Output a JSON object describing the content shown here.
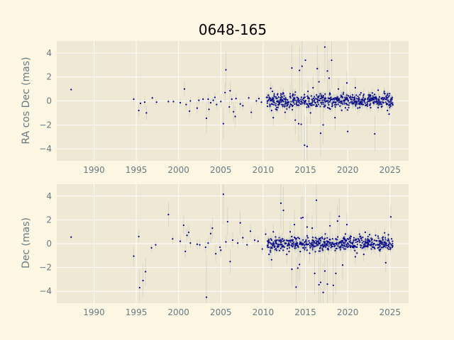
{
  "chart_data": [
    {
      "type": "scatter",
      "title": "0648-165",
      "xlabel": "",
      "ylabel": "RA cos Dec (mas)",
      "xlim": [
        1985.6,
        2027.2
      ],
      "ylim": [
        -5.0,
        5.0
      ],
      "xticks": [
        1990,
        1995,
        2000,
        2005,
        2010,
        2015,
        2020,
        2025
      ],
      "yticks": [
        -4,
        -2,
        0,
        2,
        4
      ],
      "grid": true,
      "points": [
        [
          1987.3,
          0.95,
          0.15
        ],
        [
          1994.7,
          0.15,
          0.3
        ],
        [
          1995.3,
          -0.8,
          0.5
        ],
        [
          1995.5,
          -0.2,
          0.4
        ],
        [
          1996.0,
          -0.1,
          0.5
        ],
        [
          1996.2,
          -1.0,
          0.6
        ],
        [
          1996.9,
          0.25,
          0.2
        ],
        [
          1997.4,
          -0.1,
          0.3
        ],
        [
          1998.8,
          -0.05,
          0.2
        ],
        [
          1999.4,
          -0.05,
          0.2
        ],
        [
          2000.2,
          -0.15,
          0.3
        ],
        [
          2000.7,
          1.0,
          0.6
        ],
        [
          2000.9,
          -0.3,
          0.4
        ],
        [
          2001.3,
          -0.85,
          0.5
        ],
        [
          2001.4,
          0.0,
          0.3
        ],
        [
          2002.2,
          -0.6,
          0.5
        ],
        [
          2002.4,
          0.05,
          0.3
        ],
        [
          2002.9,
          0.15,
          0.3
        ],
        [
          2003.3,
          -1.45,
          1.3
        ],
        [
          2003.5,
          0.15,
          0.4
        ],
        [
          2003.6,
          -0.7,
          0.7
        ],
        [
          2003.8,
          -0.15,
          0.3
        ],
        [
          2004.1,
          0.05,
          0.3
        ],
        [
          2004.3,
          0.3,
          0.4
        ],
        [
          2004.5,
          -0.3,
          0.4
        ],
        [
          2005.0,
          -0.05,
          0.5
        ],
        [
          2005.3,
          -1.9,
          1.3
        ],
        [
          2005.6,
          2.6,
          1.5
        ],
        [
          2005.5,
          0.7,
          0.8
        ],
        [
          2006.0,
          -0.5,
          0.6
        ],
        [
          2006.1,
          0.85,
          0.7
        ],
        [
          2006.3,
          0.15,
          0.4
        ],
        [
          2006.5,
          -0.9,
          0.8
        ],
        [
          2006.7,
          -1.3,
          0.9
        ],
        [
          2006.8,
          0.2,
          0.4
        ],
        [
          2007.3,
          -0.25,
          0.4
        ],
        [
          2007.6,
          -0.4,
          0.4
        ],
        [
          2008.3,
          0.25,
          0.3
        ],
        [
          2008.6,
          -0.95,
          0.5
        ],
        [
          2009.2,
          0.0,
          0.3
        ],
        [
          2009.5,
          0.2,
          0.3
        ],
        [
          2009.8,
          -0.1,
          0.3
        ],
        [
          2010.4,
          0.3,
          0.4
        ],
        [
          2010.7,
          0.1,
          0.4
        ],
        [
          2010.9,
          1.05,
          0.6
        ],
        [
          2011.0,
          -0.8,
          0.5
        ],
        [
          2011.1,
          0.8,
          0.5
        ],
        [
          2011.2,
          -1.4,
          0.7
        ],
        [
          2011.3,
          0.45,
          0.4
        ],
        [
          2011.6,
          -0.55,
          0.5
        ],
        [
          2011.8,
          0.0,
          0.4
        ],
        [
          2012.1,
          0.6,
          0.6
        ],
        [
          2012.3,
          0.1,
          0.4
        ],
        [
          2012.6,
          -0.95,
          0.6
        ],
        [
          2013.2,
          0.6,
          0.8
        ],
        [
          2013.4,
          2.75,
          2.0
        ],
        [
          2013.8,
          -1.6,
          1.2
        ],
        [
          2014.0,
          0.3,
          0.5
        ],
        [
          2014.2,
          -1.9,
          1.5
        ],
        [
          2014.3,
          2.55,
          2.0
        ],
        [
          2014.5,
          -1.95,
          1.6
        ],
        [
          2014.6,
          2.9,
          2.2
        ],
        [
          2014.9,
          -3.7,
          2.5
        ],
        [
          2015.0,
          3.4,
          2.4
        ],
        [
          2015.2,
          -3.8,
          2.5
        ],
        [
          2015.3,
          0.8,
          0.8
        ],
        [
          2015.6,
          -1.0,
          0.9
        ],
        [
          2015.9,
          1.1,
          1.0
        ],
        [
          2016.4,
          2.7,
          2.0
        ],
        [
          2016.6,
          1.6,
          1.4
        ],
        [
          2016.8,
          -2.7,
          2.0
        ],
        [
          2017.1,
          -2.0,
          1.6
        ],
        [
          2017.3,
          4.5,
          2.8
        ],
        [
          2017.6,
          2.5,
          2.0
        ],
        [
          2017.8,
          1.9,
          1.5
        ],
        [
          2018.1,
          3.4,
          2.4
        ],
        [
          2018.5,
          -1.4,
          1.1
        ],
        [
          2018.9,
          1.0,
          0.9
        ],
        [
          2019.5,
          0.7,
          0.6
        ],
        [
          2019.9,
          1.5,
          1.0
        ],
        [
          2020.0,
          -2.55,
          1.5
        ],
        [
          2020.3,
          0.4,
          0.5
        ],
        [
          2020.9,
          1.1,
          0.8
        ],
        [
          2021.2,
          -0.6,
          0.5
        ],
        [
          2021.9,
          0.55,
          0.5
        ],
        [
          2022.3,
          -0.4,
          0.4
        ],
        [
          2022.7,
          0.35,
          0.4
        ],
        [
          2023.2,
          -2.75,
          1.5
        ],
        [
          2023.6,
          0.9,
          0.5
        ],
        [
          2024.0,
          -0.5,
          0.4
        ],
        [
          2024.4,
          0.6,
          0.4
        ],
        [
          2024.7,
          -0.8,
          0.4
        ],
        [
          2024.9,
          -1.1,
          0.5
        ],
        [
          2025.2,
          0.1,
          0.2
        ]
      ]
    },
    {
      "type": "scatter",
      "xlabel": "",
      "ylabel": "Dec (mas)",
      "xlim": [
        1985.6,
        2027.2
      ],
      "ylim": [
        -5.0,
        5.0
      ],
      "xticks": [
        1990,
        1995,
        2000,
        2005,
        2010,
        2015,
        2020,
        2025
      ],
      "yticks": [
        -4,
        -2,
        0,
        2,
        4
      ],
      "grid": true,
      "points": [
        [
          1987.3,
          0.55,
          0.15
        ],
        [
          1994.7,
          -1.05,
          0.8
        ],
        [
          1995.3,
          0.6,
          0.5
        ],
        [
          1995.4,
          -3.7,
          1.5
        ],
        [
          1995.8,
          -3.1,
          1.4
        ],
        [
          1996.1,
          -2.35,
          1.2
        ],
        [
          1996.8,
          -0.35,
          0.3
        ],
        [
          1997.3,
          -0.1,
          0.3
        ],
        [
          1998.8,
          2.45,
          1.0
        ],
        [
          1999.3,
          0.4,
          0.4
        ],
        [
          2000.2,
          0.2,
          0.4
        ],
        [
          2000.6,
          1.55,
          0.8
        ],
        [
          2000.8,
          -0.65,
          0.6
        ],
        [
          2001.0,
          0.7,
          0.6
        ],
        [
          2001.2,
          0.95,
          0.6
        ],
        [
          2001.4,
          0.05,
          0.4
        ],
        [
          2002.2,
          -0.05,
          0.4
        ],
        [
          2002.5,
          -0.1,
          0.4
        ],
        [
          2003.2,
          -0.3,
          0.5
        ],
        [
          2003.3,
          -4.5,
          3.5
        ],
        [
          2003.5,
          0.05,
          0.5
        ],
        [
          2003.8,
          0.85,
          0.8
        ],
        [
          2004.0,
          1.3,
          0.9
        ],
        [
          2004.4,
          -0.85,
          0.7
        ],
        [
          2004.9,
          -0.3,
          0.5
        ],
        [
          2005.0,
          -0.55,
          0.5
        ],
        [
          2005.3,
          4.15,
          2.5
        ],
        [
          2005.6,
          0.15,
          0.5
        ],
        [
          2005.8,
          1.85,
          1.2
        ],
        [
          2006.1,
          -1.5,
          1.0
        ],
        [
          2006.4,
          0.3,
          0.6
        ],
        [
          2007.0,
          0.05,
          0.4
        ],
        [
          2007.3,
          1.75,
          1.0
        ],
        [
          2007.6,
          0.5,
          0.5
        ],
        [
          2008.1,
          -0.1,
          0.4
        ],
        [
          2008.5,
          1.05,
          0.6
        ],
        [
          2009.0,
          0.3,
          0.4
        ],
        [
          2009.4,
          0.2,
          0.4
        ],
        [
          2009.9,
          -0.45,
          0.4
        ],
        [
          2010.3,
          0.8,
          0.5
        ],
        [
          2010.7,
          -0.9,
          0.6
        ],
        [
          2010.9,
          0.4,
          0.5
        ],
        [
          2011.0,
          -1.35,
          0.8
        ],
        [
          2011.2,
          1.0,
          0.6
        ],
        [
          2011.4,
          -0.5,
          0.5
        ],
        [
          2011.9,
          0.5,
          0.5
        ],
        [
          2012.1,
          3.4,
          2.2
        ],
        [
          2012.4,
          2.8,
          2.0
        ],
        [
          2012.8,
          -0.9,
          0.8
        ],
        [
          2013.2,
          1.0,
          0.9
        ],
        [
          2013.4,
          -2.15,
          1.5
        ],
        [
          2013.7,
          1.6,
          1.2
        ],
        [
          2013.9,
          -3.65,
          2.5
        ],
        [
          2014.1,
          -2.05,
          1.6
        ],
        [
          2014.3,
          -1.75,
          1.5
        ],
        [
          2014.5,
          2.15,
          1.8
        ],
        [
          2014.7,
          2.2,
          1.8
        ],
        [
          2014.9,
          -0.5,
          0.7
        ],
        [
          2015.2,
          1.4,
          1.1
        ],
        [
          2015.5,
          -0.8,
          0.8
        ],
        [
          2015.8,
          1.3,
          1.0
        ],
        [
          2016.1,
          -2.5,
          1.8
        ],
        [
          2016.3,
          3.65,
          2.4
        ],
        [
          2016.6,
          -3.45,
          2.3
        ],
        [
          2016.8,
          -3.25,
          2.2
        ],
        [
          2017.1,
          -4.1,
          2.5
        ],
        [
          2017.3,
          -2.3,
          1.8
        ],
        [
          2017.6,
          -3.4,
          2.3
        ],
        [
          2017.9,
          1.5,
          1.2
        ],
        [
          2018.3,
          -3.5,
          2.3
        ],
        [
          2018.6,
          -2.5,
          1.8
        ],
        [
          2018.8,
          1.9,
          1.3
        ],
        [
          2019.0,
          2.3,
          1.5
        ],
        [
          2019.4,
          -1.8,
          1.2
        ],
        [
          2019.9,
          1.6,
          1.0
        ],
        [
          2020.4,
          0.6,
          0.5
        ],
        [
          2020.9,
          -1.1,
          0.7
        ],
        [
          2021.4,
          0.8,
          0.5
        ],
        [
          2021.9,
          -0.9,
          0.6
        ],
        [
          2022.4,
          0.6,
          0.5
        ],
        [
          2022.8,
          -0.45,
          0.4
        ],
        [
          2023.3,
          0.7,
          0.5
        ],
        [
          2023.8,
          -0.6,
          0.5
        ],
        [
          2024.1,
          0.5,
          0.4
        ],
        [
          2024.5,
          -1.6,
          0.8
        ],
        [
          2024.8,
          0.4,
          0.4
        ],
        [
          2025.1,
          2.25,
          1.0
        ],
        [
          2025.3,
          0.2,
          0.3
        ]
      ]
    }
  ],
  "dense_cluster": {
    "x_range": [
      2010.5,
      2025.4
    ],
    "spread": 0.28,
    "count": 560
  }
}
